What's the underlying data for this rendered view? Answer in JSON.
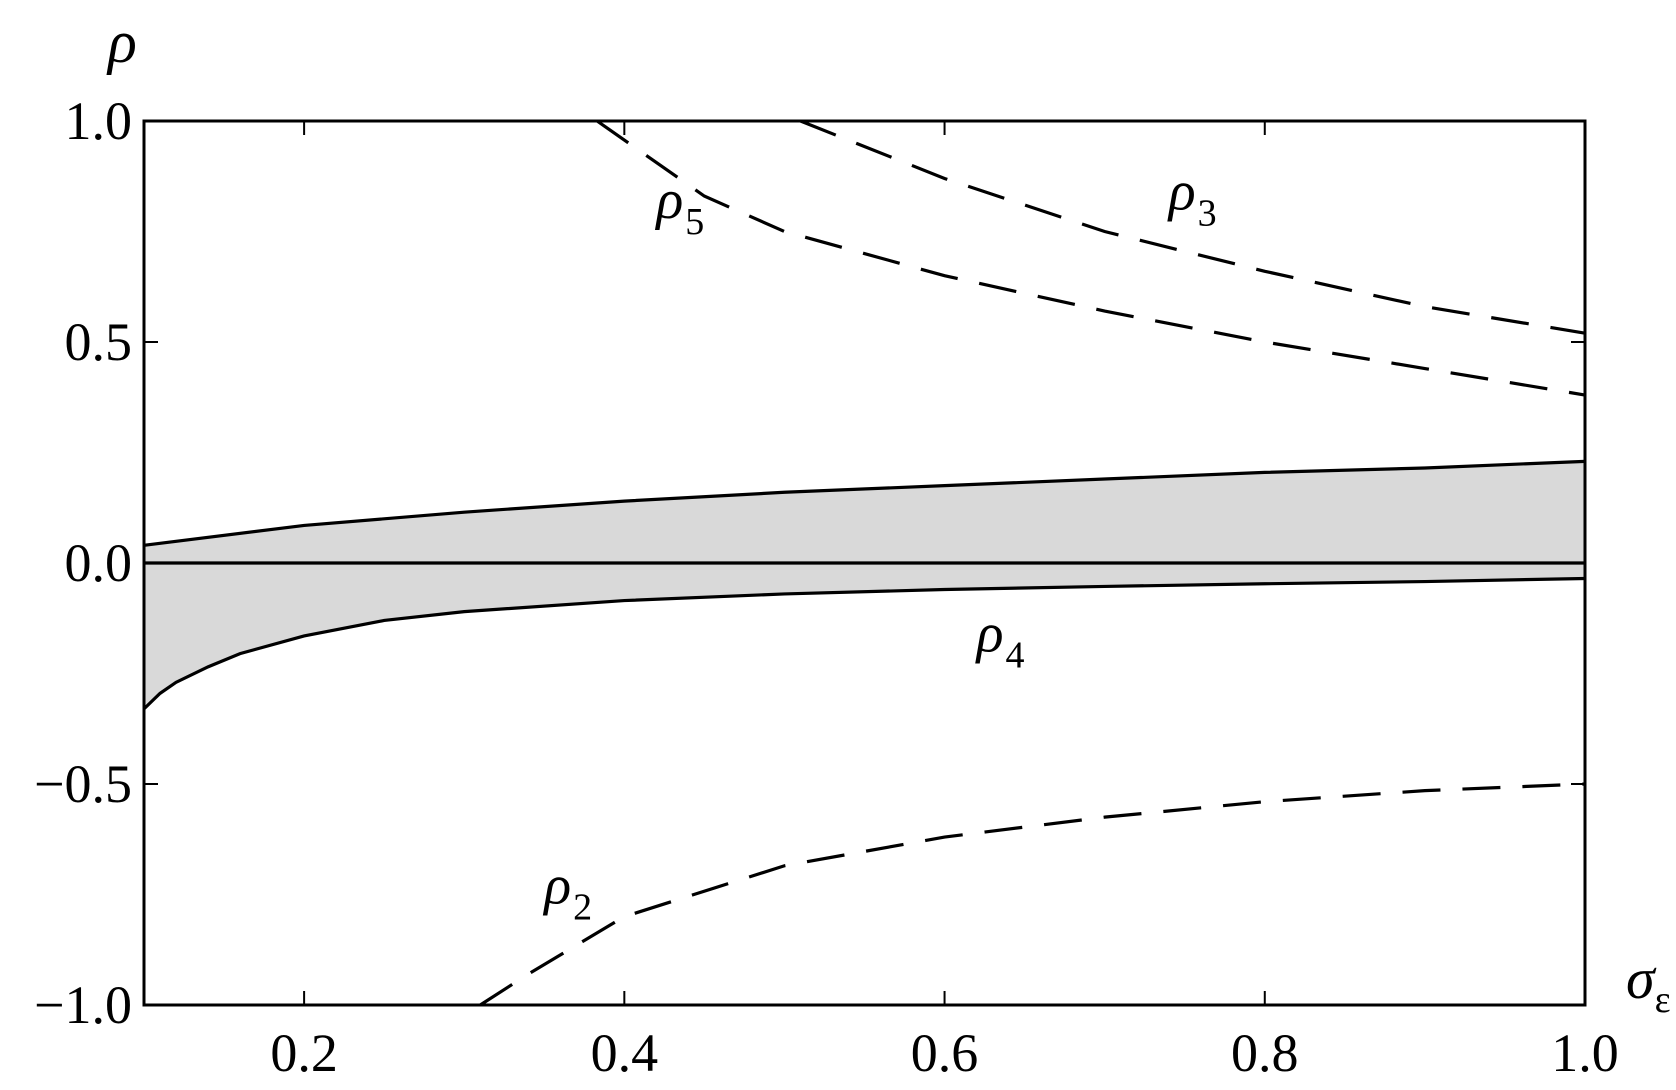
{
  "chart_data": {
    "type": "line",
    "xlabel": "σ",
    "xlabel_sub": "ε",
    "ylabel": "ρ",
    "xlim": [
      0.1,
      1.0
    ],
    "ylim": [
      -1.0,
      1.0
    ],
    "x_ticks": [
      0.2,
      0.4,
      0.6,
      0.8,
      1.0
    ],
    "x_tick_labels": [
      "0.2",
      "0.4",
      "0.6",
      "0.8",
      "1.0"
    ],
    "y_ticks": [
      -1.0,
      -0.5,
      0.0,
      0.5,
      1.0
    ],
    "y_tick_labels": [
      "−1.0",
      "−0.5",
      "0.0",
      "0.5",
      "1.0"
    ],
    "grid": false,
    "legend": "none",
    "shaded_region_color": "#d9d9d9",
    "line_color": "#000000",
    "shaded_region": {
      "upper": {
        "x": [
          0.1,
          0.2,
          0.3,
          0.4,
          0.5,
          0.6,
          0.7,
          0.8,
          0.9,
          1.0
        ],
        "y": [
          0.04,
          0.085,
          0.115,
          0.14,
          0.16,
          0.175,
          0.19,
          0.205,
          0.215,
          0.23
        ]
      },
      "lower": {
        "x": [
          0.1,
          0.11,
          0.12,
          0.14,
          0.16,
          0.2,
          0.25,
          0.3,
          0.4,
          0.5,
          0.6,
          0.7,
          0.8,
          0.9,
          1.0
        ],
        "y": [
          -0.33,
          -0.295,
          -0.27,
          -0.235,
          -0.205,
          -0.165,
          -0.13,
          -0.11,
          -0.085,
          -0.07,
          -0.06,
          -0.053,
          -0.047,
          -0.042,
          -0.035
        ]
      }
    },
    "series": [
      {
        "name": "ρ",
        "sub": "5",
        "style": "dashed",
        "x": [
          0.383,
          0.45,
          0.5,
          0.6,
          0.7,
          0.8,
          0.9,
          1.0
        ],
        "y": [
          1.0,
          0.83,
          0.75,
          0.65,
          0.57,
          0.5,
          0.44,
          0.38
        ]
      },
      {
        "name": "ρ",
        "sub": "3",
        "style": "dashed",
        "x": [
          0.51,
          0.6,
          0.7,
          0.8,
          0.9,
          1.0
        ],
        "y": [
          1.0,
          0.87,
          0.75,
          0.66,
          0.58,
          0.52
        ]
      },
      {
        "name": "ρ",
        "sub": "2",
        "style": "dashed",
        "x": [
          0.31,
          0.34,
          0.4,
          0.5,
          0.6,
          0.7,
          0.8,
          0.9,
          1.0
        ],
        "y": [
          -1.0,
          -0.93,
          -0.8,
          -0.685,
          -0.62,
          -0.575,
          -0.54,
          -0.515,
          -0.5
        ]
      },
      {
        "name": "ρ",
        "sub": "4",
        "style": "solid",
        "x": [
          0.1,
          1.0
        ],
        "y": [
          0.0,
          0.0
        ]
      }
    ],
    "annotations": [
      {
        "text": "ρ",
        "sub": "5",
        "x": 0.42,
        "y": 0.78
      },
      {
        "text": "ρ",
        "sub": "3",
        "x": 0.74,
        "y": 0.8
      },
      {
        "text": "ρ",
        "sub": "4",
        "x": 0.62,
        "y": -0.2
      },
      {
        "text": "ρ",
        "sub": "2",
        "x": 0.35,
        "y": -0.77
      }
    ]
  }
}
